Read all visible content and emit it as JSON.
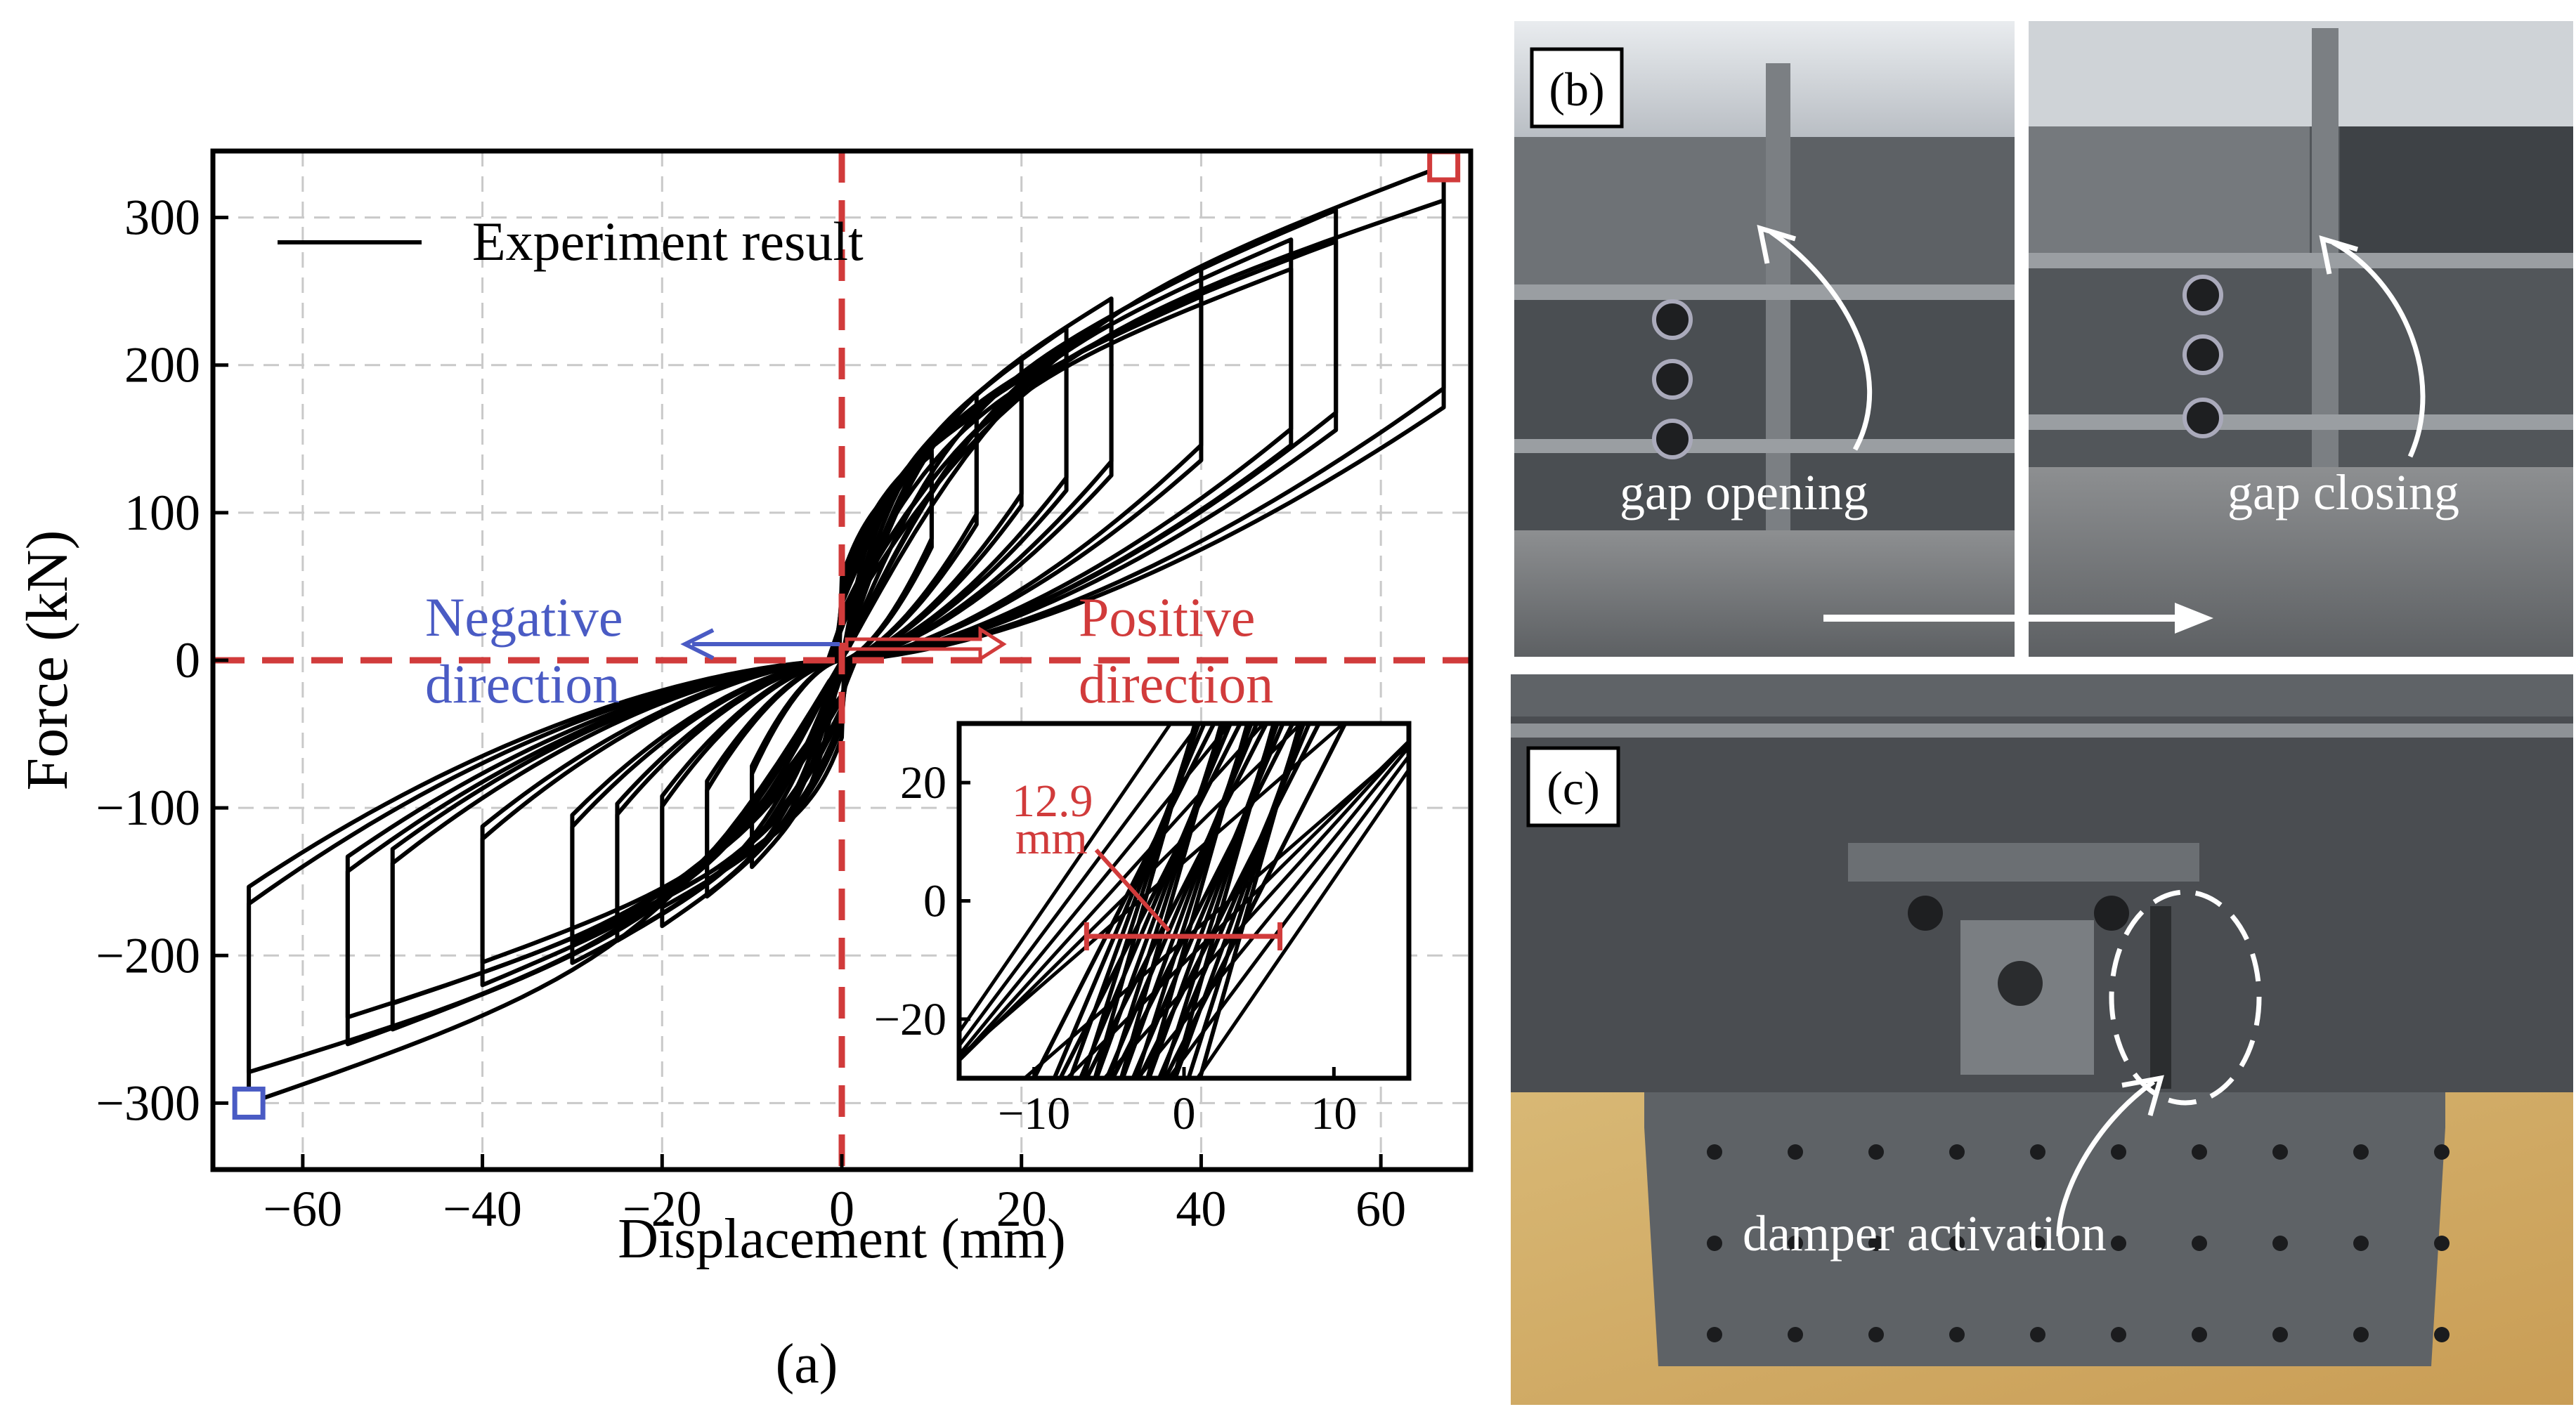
{
  "chart_data": {
    "type": "line",
    "panel_label": "(a)",
    "xlabel": "Displacement (mm)",
    "ylabel": "Force (kN)",
    "xlim": [
      -70,
      70
    ],
    "ylim": [
      -345,
      345
    ],
    "xticks": [
      -60,
      -40,
      -20,
      0,
      20,
      40,
      60
    ],
    "yticks": [
      -300,
      -200,
      -100,
      0,
      100,
      200,
      300
    ],
    "grid": true,
    "legend": {
      "position": "top-left",
      "entries": [
        "Experiment result"
      ]
    },
    "series": [
      {
        "name": "Experiment result",
        "color": "#000000",
        "cycles": [
          {
            "amp_pos": 10,
            "amp_neg": -10,
            "f_pos": 150,
            "f_neg": -140
          },
          {
            "amp_pos": 15,
            "amp_neg": -15,
            "f_pos": 180,
            "f_neg": -160
          },
          {
            "amp_pos": 20,
            "amp_neg": -20,
            "f_pos": 205,
            "f_neg": -180
          },
          {
            "amp_pos": 25,
            "amp_neg": -25,
            "f_pos": 225,
            "f_neg": -190
          },
          {
            "amp_pos": 30,
            "amp_neg": -30,
            "f_pos": 245,
            "f_neg": -205
          },
          {
            "amp_pos": 40,
            "amp_neg": -40,
            "f_pos": 265,
            "f_neg": -220
          },
          {
            "amp_pos": 50,
            "amp_neg": -50,
            "f_pos": 285,
            "f_neg": -250
          },
          {
            "amp_pos": 55,
            "amp_neg": -55,
            "f_pos": 305,
            "f_neg": -260
          },
          {
            "amp_pos": 67,
            "amp_neg": -66,
            "f_pos": 335,
            "f_neg": -300
          }
        ]
      }
    ],
    "annotations": {
      "negative": {
        "line1": "Negative",
        "line2": "direction",
        "color": "#4a5bc4"
      },
      "positive": {
        "line1": "Positive",
        "line2": "direction",
        "color": "#d13b3b"
      },
      "axis_line_color": "#d13b3b",
      "marker_max": {
        "x": 67,
        "y": 335,
        "color": "#d13b3b"
      },
      "marker_min": {
        "x": -66,
        "y": -300,
        "color": "#4a5bc4"
      }
    },
    "inset": {
      "xlim": [
        -15,
        15
      ],
      "ylim": [
        -30,
        30
      ],
      "xticks": [
        -10,
        0,
        10
      ],
      "yticks": [
        -20,
        0,
        20
      ],
      "gap_label_value": "12.9",
      "gap_label_unit": "mm",
      "gap_from": -6.5,
      "gap_to": 6.4,
      "color": "#d13b3b"
    }
  },
  "photos": {
    "b": {
      "label": "(b)",
      "left_caption": "gap opening",
      "right_caption": "gap closing"
    },
    "c": {
      "label": "(c)",
      "caption": "damper activation"
    }
  }
}
